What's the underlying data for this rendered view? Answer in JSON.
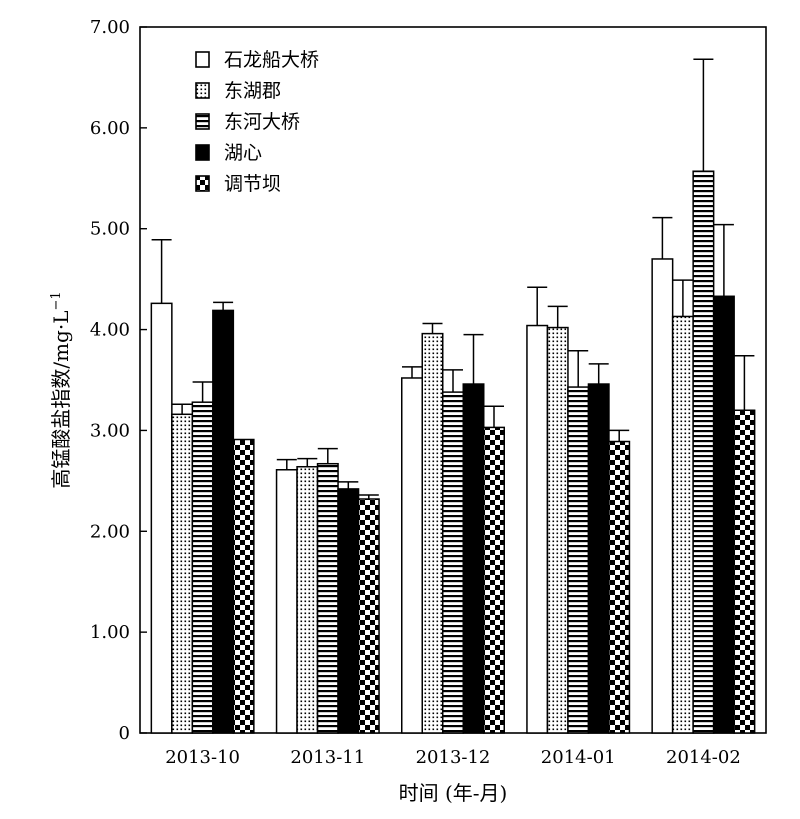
{
  "chart_data": {
    "type": "bar",
    "xlabel": "时间 (年-月)",
    "ylabel": "高锰酸盐指数/mg·L",
    "ylabel_superscript": "−1",
    "ylim": [
      0,
      7
    ],
    "yticks": [
      "0",
      "1.00",
      "2.00",
      "3.00",
      "4.00",
      "5.00",
      "6.00",
      "7.00"
    ],
    "ytick_values": [
      0,
      1,
      2,
      3,
      4,
      5,
      6,
      7
    ],
    "grid": false,
    "legend_position": "top-left",
    "categories": [
      "2013-10",
      "2013-11",
      "2013-12",
      "2014-01",
      "2014-02"
    ],
    "series": [
      {
        "name": "石龙船大桥",
        "pattern": "open",
        "values": [
          4.26,
          2.61,
          3.52,
          4.04,
          4.7
        ],
        "errors": [
          0.63,
          0.1,
          0.11,
          0.38,
          0.41
        ]
      },
      {
        "name": "东湖郡",
        "pattern": "dotted",
        "values": [
          3.16,
          2.64,
          3.96,
          4.02,
          4.13
        ],
        "errors": [
          0.1,
          0.08,
          0.1,
          0.21,
          0.36
        ]
      },
      {
        "name": "东河大桥",
        "pattern": "horizontal",
        "values": [
          3.28,
          2.67,
          3.38,
          3.43,
          5.57
        ],
        "errors": [
          0.2,
          0.15,
          0.22,
          0.36,
          1.11
        ]
      },
      {
        "name": "湖心",
        "pattern": "solid",
        "values": [
          4.19,
          2.42,
          3.46,
          3.46,
          4.33
        ],
        "errors": [
          0.08,
          0.07,
          0.49,
          0.2,
          0.71
        ]
      },
      {
        "name": "调节坝",
        "pattern": "checker",
        "values": [
          2.91,
          2.32,
          3.03,
          2.89,
          3.2
        ],
        "errors": [
          0.0,
          0.04,
          0.21,
          0.11,
          0.54
        ]
      }
    ]
  }
}
